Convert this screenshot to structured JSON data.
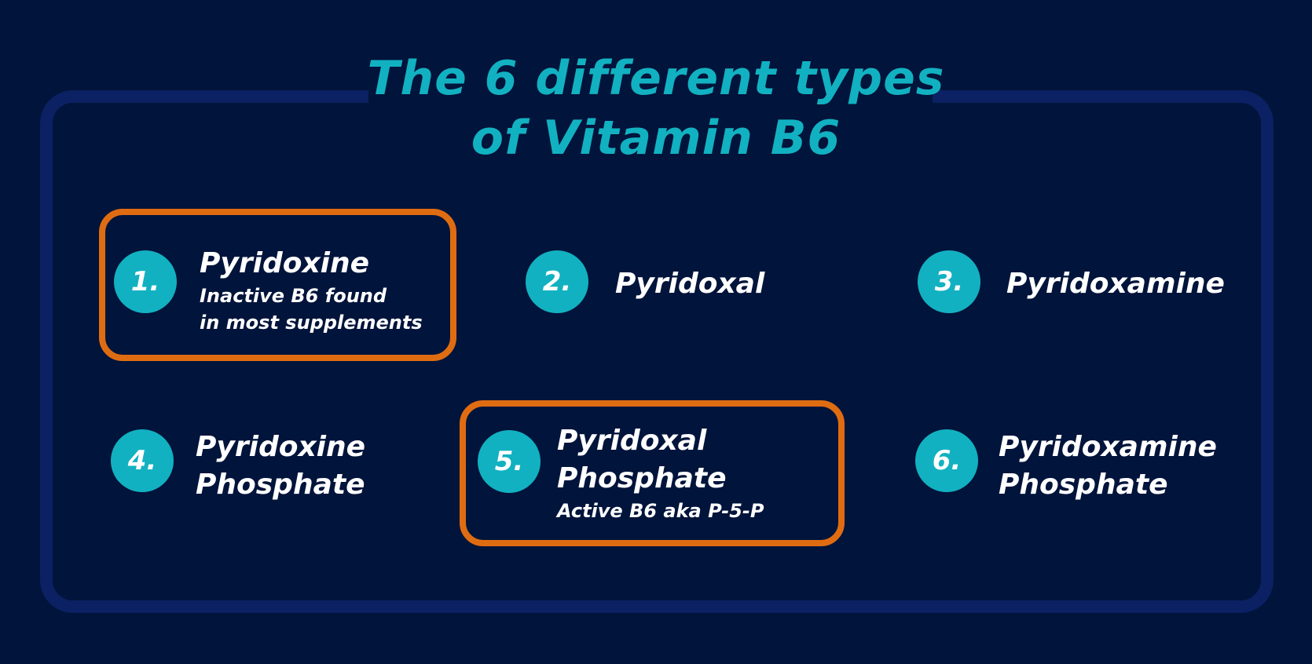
{
  "title": "The 6 different types\nof Vitamin B6",
  "title_lines": [
    "The 6 different types",
    "of Vitamin B6"
  ],
  "colors": {
    "background": "#01143b",
    "frame": "#0b2163",
    "accent_teal": "#12b1c1",
    "highlight_orange": "#e06c12"
  },
  "items": [
    {
      "number": "1.",
      "name": "Pyridoxine",
      "note": "Inactive B6 found\nin most supplements",
      "highlighted": true
    },
    {
      "number": "2.",
      "name": "Pyridoxal",
      "note": "",
      "highlighted": false
    },
    {
      "number": "3.",
      "name": "Pyridoxamine",
      "note": "",
      "highlighted": false
    },
    {
      "number": "4.",
      "name": "Pyridoxine\nPhosphate",
      "note": "",
      "highlighted": false
    },
    {
      "number": "5.",
      "name": "Pyridoxal\nPhosphate",
      "note": "Active B6 aka P-5-P",
      "highlighted": true
    },
    {
      "number": "6.",
      "name": "Pyridoxamine\nPhosphate",
      "note": "",
      "highlighted": false
    }
  ]
}
